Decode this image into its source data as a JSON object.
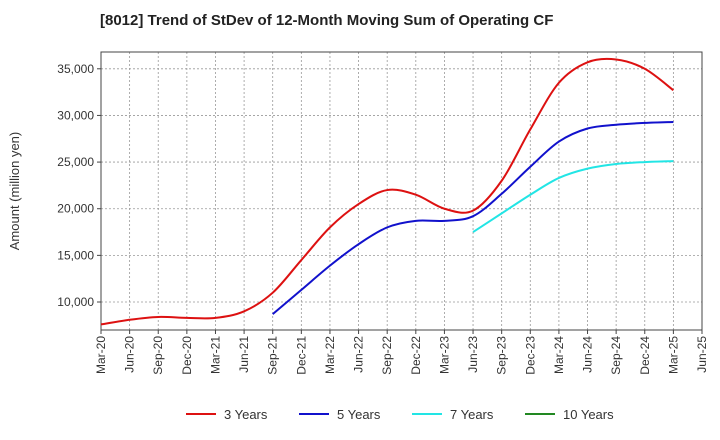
{
  "chart_data": {
    "type": "line",
    "title": "[8012]  Trend of StDev of 12-Month Moving Sum of Operating CF",
    "ylabel": "Amount (million yen)",
    "xlabel": "",
    "ylim": [
      7000,
      36800
    ],
    "yticks": [
      10000,
      15000,
      20000,
      25000,
      30000,
      35000
    ],
    "ytick_labels": [
      "10,000",
      "15,000",
      "20,000",
      "25,000",
      "30,000",
      "35,000"
    ],
    "xticks": [
      "Mar-20",
      "Jun-20",
      "Sep-20",
      "Dec-20",
      "Mar-21",
      "Jun-21",
      "Sep-21",
      "Dec-21",
      "Mar-22",
      "Jun-22",
      "Sep-22",
      "Dec-22",
      "Mar-23",
      "Jun-23",
      "Sep-23",
      "Dec-23",
      "Mar-24",
      "Jun-24",
      "Sep-24",
      "Dec-24",
      "Mar-25",
      "Jun-25"
    ],
    "grid": true,
    "legend_position": "bottom",
    "series": [
      {
        "name": "3 Years",
        "color": "#dd1111",
        "x": [
          "Mar-20",
          "Jun-20",
          "Sep-20",
          "Dec-20",
          "Mar-21",
          "Jun-21",
          "Sep-21",
          "Dec-21",
          "Mar-22",
          "Jun-22",
          "Sep-22",
          "Dec-22",
          "Mar-23",
          "Jun-23",
          "Sep-23",
          "Dec-23",
          "Mar-24",
          "Jun-24",
          "Sep-24",
          "Dec-24",
          "Mar-25"
        ],
        "values": [
          7600,
          8100,
          8400,
          8300,
          8300,
          9000,
          11000,
          14500,
          18000,
          20500,
          22000,
          21500,
          20000,
          19800,
          23000,
          28500,
          33500,
          35700,
          36000,
          35000,
          32700
        ]
      },
      {
        "name": "5 Years",
        "color": "#1111cc",
        "x": [
          "Sep-21",
          "Dec-21",
          "Mar-22",
          "Jun-22",
          "Sep-22",
          "Dec-22",
          "Mar-23",
          "Jun-23",
          "Sep-23",
          "Dec-23",
          "Mar-24",
          "Jun-24",
          "Sep-24",
          "Dec-24",
          "Mar-25"
        ],
        "values": [
          8700,
          11300,
          13900,
          16200,
          18000,
          18700,
          18700,
          19200,
          21600,
          24500,
          27200,
          28600,
          29000,
          29200,
          29300
        ]
      },
      {
        "name": "7 Years",
        "color": "#22e5e5",
        "x": [
          "Jun-23",
          "Sep-23",
          "Dec-23",
          "Mar-24",
          "Jun-24",
          "Sep-24",
          "Dec-24",
          "Mar-25"
        ],
        "values": [
          17500,
          19500,
          21500,
          23300,
          24300,
          24800,
          25000,
          25100
        ]
      },
      {
        "name": "10 Years",
        "color": "#228822",
        "x": [],
        "values": []
      }
    ]
  }
}
